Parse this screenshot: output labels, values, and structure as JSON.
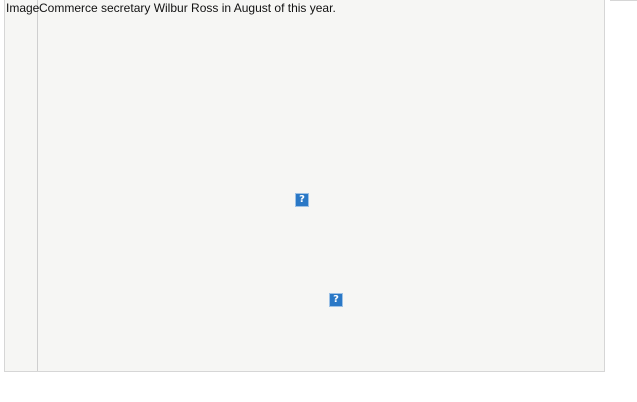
{
  "row": {
    "label": "Image",
    "caption": "Commerce secretary Wilbur Ross in August of this year."
  },
  "images": [
    {
      "icon": "broken-image-icon",
      "glyph": "?"
    },
    {
      "icon": "broken-image-icon",
      "glyph": "?"
    }
  ],
  "colors": {
    "panel_bg": "#f6f6f4",
    "border": "#d6d6d6",
    "placeholder_blue": "#2a78c6"
  }
}
